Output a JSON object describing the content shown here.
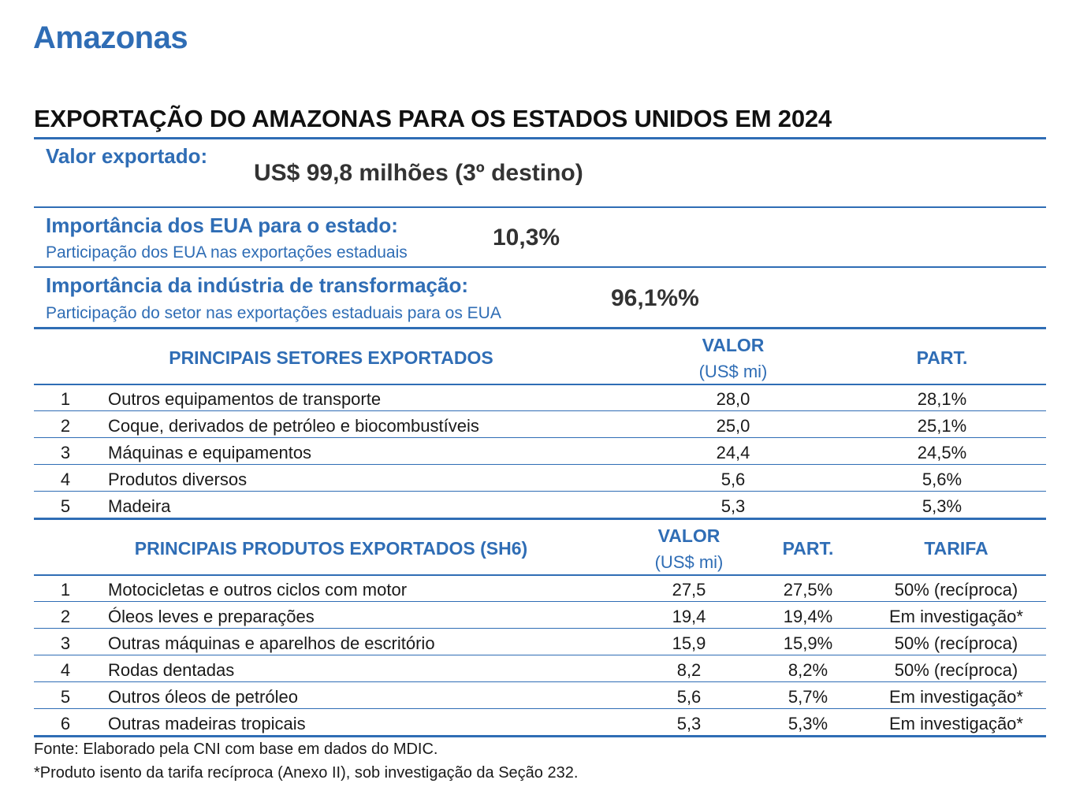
{
  "state_name": "Amazonas",
  "title": "EXPORTAÇÃO DO AMAZONAS PARA OS ESTADOS UNIDOS EM 2024",
  "summary": {
    "valor_label": "Valor exportado:",
    "valor_value": "US$ 99,8 milhões (3º destino)",
    "importancia_eua_label": "Importância dos EUA para o estado:",
    "importancia_eua_sub": "Participação dos EUA nas exportações estaduais",
    "importancia_eua_value": "10,3%",
    "importancia_ind_label": "Importância da indústria de transformação:",
    "importancia_ind_sub": "Participação do setor nas exportações estaduais para os EUA",
    "importancia_ind_value": "96,1%%"
  },
  "sectors": {
    "header_title": "PRINCIPAIS SETORES EXPORTADOS",
    "header_valor": "VALOR",
    "header_valor_unit": "(US$ mi)",
    "header_part": "PART.",
    "rows": [
      {
        "rank": "1",
        "name": "Outros equipamentos de transporte",
        "valor": "28,0",
        "part": "28,1%"
      },
      {
        "rank": "2",
        "name": "Coque, derivados de petróleo e biocombustíveis",
        "valor": "25,0",
        "part": "25,1%"
      },
      {
        "rank": "3",
        "name": "Máquinas e equipamentos",
        "valor": "24,4",
        "part": "24,5%"
      },
      {
        "rank": "4",
        "name": "Produtos diversos",
        "valor": "5,6",
        "part": "5,6%"
      },
      {
        "rank": "5",
        "name": "Madeira",
        "valor": "5,3",
        "part": "5,3%"
      }
    ]
  },
  "products": {
    "header_title": "PRINCIPAIS PRODUTOS EXPORTADOS (SH6)",
    "header_valor": "VALOR",
    "header_valor_unit": "(US$ mi)",
    "header_part": "PART.",
    "header_tarifa": "TARIFA",
    "rows": [
      {
        "rank": "1",
        "name": "Motocicletas e outros ciclos com motor",
        "valor": "27,5",
        "part": "27,5%",
        "tarifa": "50% (recíproca)"
      },
      {
        "rank": "2",
        "name": "Óleos leves e preparações",
        "valor": "19,4",
        "part": "19,4%",
        "tarifa": "Em investigação*"
      },
      {
        "rank": "3",
        "name": "Outras máquinas e aparelhos de escritório",
        "valor": "15,9",
        "part": "15,9%",
        "tarifa": "50% (recíproca)"
      },
      {
        "rank": "4",
        "name": "Rodas dentadas",
        "valor": "8,2",
        "part": "8,2%",
        "tarifa": "50% (recíproca)"
      },
      {
        "rank": "5",
        "name": "Outros óleos de petróleo",
        "valor": "5,6",
        "part": "5,7%",
        "tarifa": "Em investigação*"
      },
      {
        "rank": "6",
        "name": "Outras madeiras tropicais",
        "valor": "5,3",
        "part": "5,3%",
        "tarifa": "Em investigação*"
      }
    ]
  },
  "footnotes": {
    "source": "Fonte: Elaborado pela CNI com base em dados do MDIC.",
    "note": "*Produto isento da tarifa recíproca (Anexo II), sob investigação da Seção 232."
  }
}
